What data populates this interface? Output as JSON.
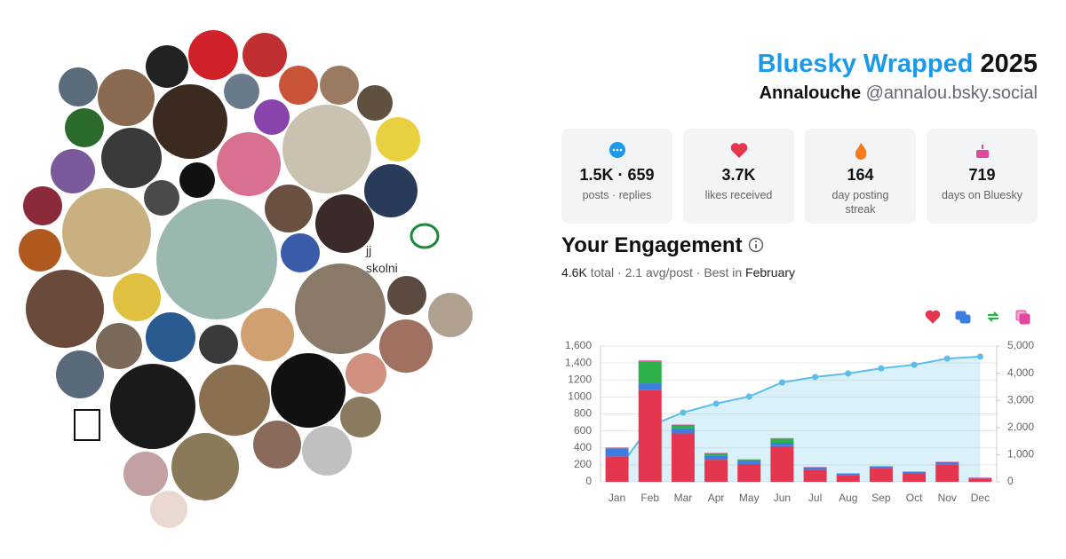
{
  "header": {
    "title": "Bluesky Wrapped",
    "year": "2025",
    "name": "Annalouche",
    "handle": "@annalou.bsky.social"
  },
  "stats": [
    {
      "value": "1.5K · 659",
      "label": "posts · replies"
    },
    {
      "value": "3.7K",
      "label": "likes received"
    },
    {
      "value": "164",
      "label": "day posting streak"
    },
    {
      "value": "719",
      "label": "days on Bluesky"
    }
  ],
  "engagement": {
    "heading": "Your Engagement",
    "total": "4.6K",
    "summary": "total · 2.1 avg/post · Best in",
    "best": "February"
  },
  "collage": {
    "broken_label": [
      "jj",
      "skolni"
    ]
  },
  "chart_data": {
    "type": "bar",
    "stacked": true,
    "grid": true,
    "categories": [
      "Jan",
      "Feb",
      "Mar",
      "Apr",
      "May",
      "Jun",
      "Jul",
      "Aug",
      "Sep",
      "Oct",
      "Nov",
      "Dec"
    ],
    "series": [
      {
        "color": "#e5364f",
        "values": [
          300,
          1080,
          570,
          260,
          210,
          420,
          145,
          75,
          160,
          100,
          200,
          40
        ]
      },
      {
        "color": "#3b7de0",
        "values": [
          90,
          80,
          60,
          50,
          40,
          40,
          25,
          20,
          20,
          15,
          30,
          5
        ]
      },
      {
        "color": "#2bb04a",
        "values": [
          10,
          260,
          40,
          25,
          10,
          50,
          0,
          0,
          0,
          0,
          0,
          0
        ]
      },
      {
        "color": "#e0479e",
        "values": [
          5,
          10,
          5,
          5,
          5,
          5,
          5,
          5,
          5,
          5,
          5,
          5
        ]
      },
      {
        "type": "line",
        "axis": "y2",
        "color": "#5bbdea",
        "values": [
          410,
          2060,
          2550,
          2880,
          3140,
          3660,
          3860,
          3990,
          4180,
          4310,
          4540,
          4610
        ]
      }
    ],
    "ylim": [
      0,
      1600
    ],
    "yticks": [
      0,
      200,
      400,
      600,
      800,
      1000,
      1200,
      {
        "value": 1400,
        "label": "1,400"
      },
      {
        "value": 1600,
        "label": "1,600"
      }
    ],
    "y2lim": [
      0,
      5000
    ],
    "y2ticks": [
      0,
      {
        "value": 1000,
        "label": "1,000"
      },
      {
        "value": 2000,
        "label": "2,000"
      },
      {
        "value": 3000,
        "label": "3,000"
      },
      {
        "value": 4000,
        "label": "4,000"
      },
      {
        "value": 5000,
        "label": "5,000"
      }
    ]
  }
}
